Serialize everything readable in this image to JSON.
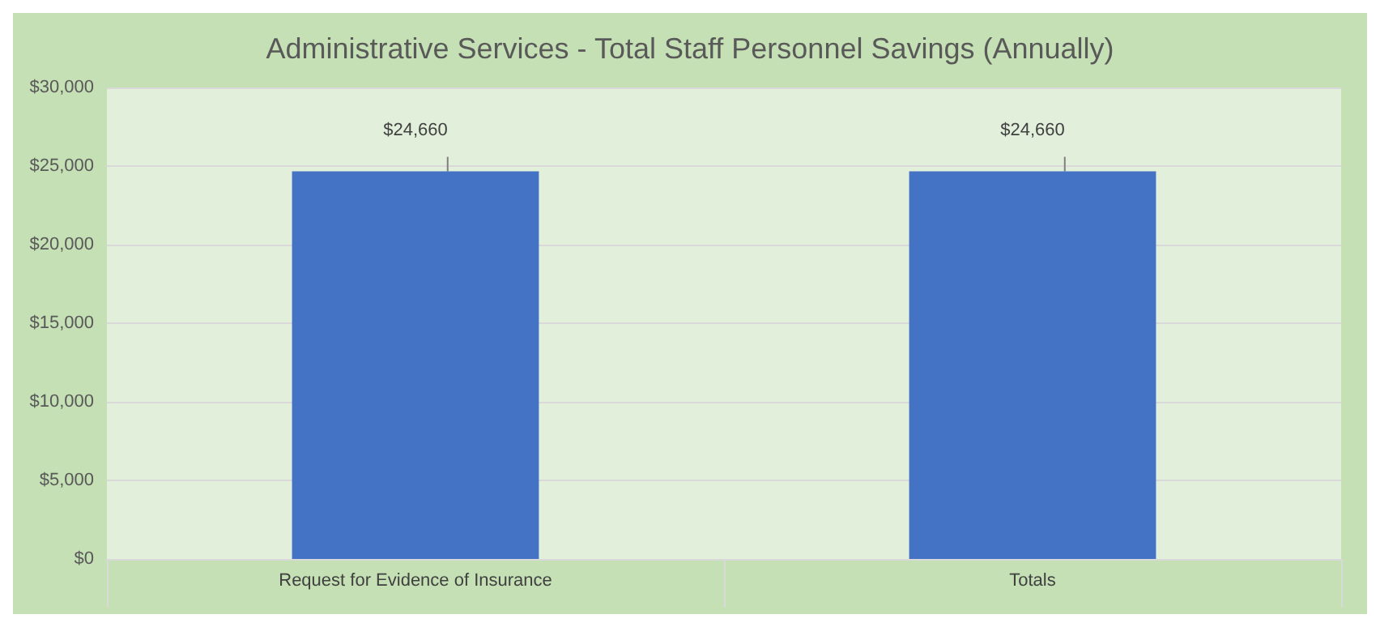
{
  "chart_data": {
    "type": "bar",
    "title": "Administrative Services - Total Staff Personnel Savings (Annually)",
    "categories": [
      "Request for Evidence of Insurance",
      "Totals"
    ],
    "values": [
      24660,
      24660
    ],
    "value_labels": [
      "$24,660",
      "$24,660"
    ],
    "color": "#4472c4",
    "ylim": [
      0,
      30000
    ],
    "yticks": [
      {
        "value": 0,
        "label": "$0"
      },
      {
        "value": 5000,
        "label": "$5,000"
      },
      {
        "value": 10000,
        "label": "$10,000"
      },
      {
        "value": 15000,
        "label": "$15,000"
      },
      {
        "value": 20000,
        "label": "$20,000"
      },
      {
        "value": 25000,
        "label": "$25,000"
      },
      {
        "value": 30000,
        "label": "$30,000"
      }
    ],
    "grid": "y"
  }
}
